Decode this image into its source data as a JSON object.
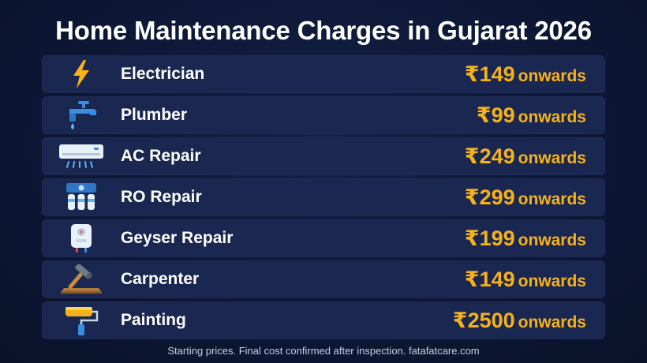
{
  "title": "Home Maintenance Charges in Gujarat 2026",
  "services": [
    {
      "name": "Electrician",
      "price": "₹149",
      "suffix": "onwards",
      "icon": "lightning-bolt-icon"
    },
    {
      "name": "Plumber",
      "price": "₹99",
      "suffix": "onwards",
      "icon": "water-tap-icon"
    },
    {
      "name": "AC Repair",
      "price": "₹249",
      "suffix": "onwards",
      "icon": "air-conditioner-icon"
    },
    {
      "name": "RO Repair",
      "price": "₹299",
      "suffix": "onwards",
      "icon": "water-filter-icon"
    },
    {
      "name": "Geyser Repair",
      "price": "₹199",
      "suffix": "onwards",
      "icon": "water-heater-icon"
    },
    {
      "name": "Carpenter",
      "price": "₹149",
      "suffix": "onwards",
      "icon": "hammer-icon"
    },
    {
      "name": "Painting",
      "price": "₹2500",
      "suffix": "onwards",
      "icon": "paint-roller-icon"
    }
  ],
  "footer": "Starting prices. Final cost confirmed after inspection. fatafatcare.com",
  "colors": {
    "background": "#0d1735",
    "row": "#1a2750",
    "price": "#f6b21b",
    "text": "#ffffff"
  }
}
